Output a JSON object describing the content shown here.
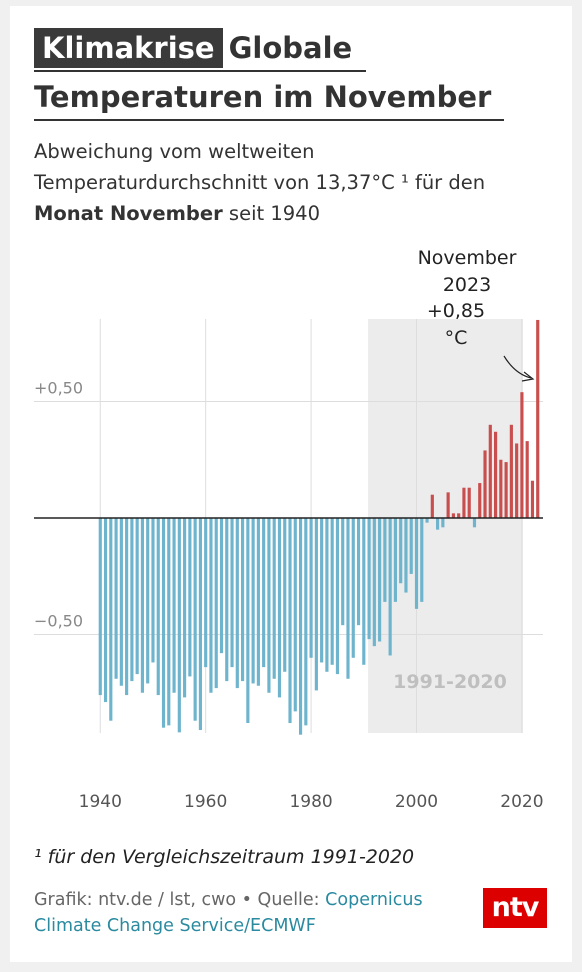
{
  "header": {
    "tag": "Klimakrise",
    "title_part1": "Globale",
    "title_part2": "Temperaturen im November"
  },
  "subtitle": {
    "line1": "Abweichung vom weltweiten",
    "line2": "Temperaturdurchschnitt von 13,37°C ¹ für den",
    "bold": "Monat November",
    "rest": " seit 1940"
  },
  "chart_data": {
    "type": "bar",
    "title": "Globale Temperaturen im November",
    "x": [
      1940,
      1941,
      1942,
      1943,
      1944,
      1945,
      1946,
      1947,
      1948,
      1949,
      1950,
      1951,
      1952,
      1953,
      1954,
      1955,
      1956,
      1957,
      1958,
      1959,
      1960,
      1961,
      1962,
      1963,
      1964,
      1965,
      1966,
      1967,
      1968,
      1969,
      1970,
      1971,
      1972,
      1973,
      1974,
      1975,
      1976,
      1977,
      1978,
      1979,
      1980,
      1981,
      1982,
      1983,
      1984,
      1985,
      1986,
      1987,
      1988,
      1989,
      1990,
      1991,
      1992,
      1993,
      1994,
      1995,
      1996,
      1997,
      1998,
      1999,
      2000,
      2001,
      2002,
      2003,
      2004,
      2005,
      2006,
      2007,
      2008,
      2009,
      2010,
      2011,
      2012,
      2013,
      2014,
      2015,
      2016,
      2017,
      2018,
      2019,
      2020,
      2021,
      2022,
      2023
    ],
    "values": [
      -0.76,
      -0.79,
      -0.87,
      -0.69,
      -0.72,
      -0.76,
      -0.7,
      -0.67,
      -0.75,
      -0.71,
      -0.62,
      -0.76,
      -0.9,
      -0.89,
      -0.75,
      -0.92,
      -0.77,
      -0.68,
      -0.87,
      -0.91,
      -0.64,
      -0.75,
      -0.73,
      -0.58,
      -0.7,
      -0.64,
      -0.73,
      -0.7,
      -0.88,
      -0.71,
      -0.72,
      -0.64,
      -0.75,
      -0.69,
      -0.77,
      -0.66,
      -0.88,
      -0.83,
      -0.93,
      -0.89,
      -0.6,
      -0.74,
      -0.62,
      -0.66,
      -0.63,
      -0.67,
      -0.46,
      -0.69,
      -0.6,
      -0.46,
      -0.63,
      -0.52,
      -0.55,
      -0.53,
      -0.36,
      -0.59,
      -0.36,
      -0.28,
      -0.32,
      -0.24,
      -0.39,
      -0.36,
      -0.02,
      0.1,
      -0.05,
      -0.04,
      0.11,
      0.02,
      0.02,
      0.13,
      0.13,
      -0.04,
      0.15,
      0.29,
      0.4,
      0.37,
      0.25,
      0.24,
      0.4,
      0.32,
      0.54,
      0.33,
      0.16,
      0.85
    ],
    "series": [
      {
        "name": "",
        "color_negative": "#6fb4cd",
        "color_positive": "#c94f4f"
      }
    ],
    "xlabel": "",
    "ylabel": "",
    "ylim": [
      -0.93,
      0.85
    ],
    "xlim": [
      1939,
      2024
    ],
    "x_ticks": [
      1940,
      1960,
      1980,
      2000,
      2020
    ],
    "x_tick_labels": [
      "1940",
      "1960",
      "1980",
      "2000",
      "2020"
    ],
    "y_ticks": [
      0.5,
      -0.5
    ],
    "y_tick_labels": [
      "+0,50",
      "−0,50"
    ],
    "grid": true,
    "reference_period": {
      "start": 1991,
      "end": 2020,
      "label": "1991-2020"
    },
    "annotation": {
      "lines": [
        "November",
        "2023",
        "+0,85",
        "°C"
      ],
      "year": 2023
    }
  },
  "footnote": "¹ für den Vergleichszeitraum 1991-2020",
  "source": {
    "prefix": "Grafik: ntv.de / lst, cwo • Quelle: ",
    "link": "Copernicus Climate Change Service/ECMWF"
  },
  "logo": {
    "text": "ntv",
    "color": "#dc0000"
  }
}
